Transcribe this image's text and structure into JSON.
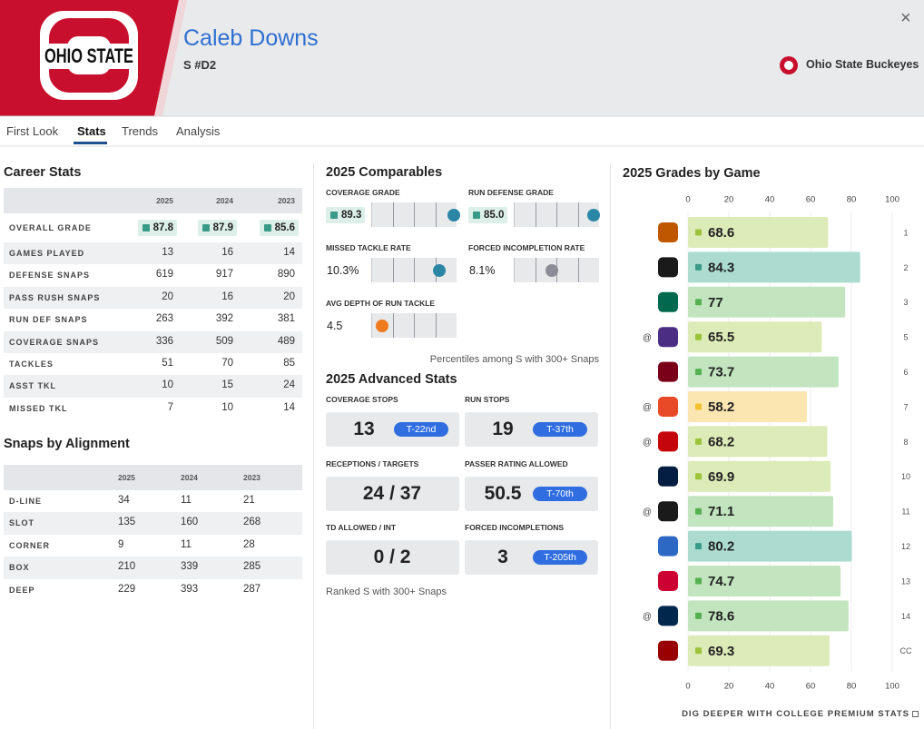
{
  "header": {
    "player_name": "Caleb Downs",
    "position": "S #D2",
    "team": "Ohio State Buckeyes",
    "logo_text": "OHIO STATE",
    "close": "×"
  },
  "tabs": {
    "items": [
      "First Look",
      "Stats",
      "Trends",
      "Analysis"
    ],
    "active": 1
  },
  "career_stats": {
    "title": "Career Stats",
    "columns": [
      "2025",
      "2024",
      "2023"
    ],
    "grade_row": {
      "label": "OVERALL GRADE",
      "values": [
        87.8,
        87.9,
        85.6
      ]
    },
    "rows": [
      {
        "label": "GAMES PLAYED",
        "values": [
          13,
          16,
          14
        ]
      },
      {
        "label": "DEFENSE SNAPS",
        "values": [
          619,
          917,
          890
        ]
      },
      {
        "label": "PASS RUSH SNAPS",
        "values": [
          20,
          16,
          20
        ]
      },
      {
        "label": "RUN DEF SNAPS",
        "values": [
          263,
          392,
          381
        ]
      },
      {
        "label": "COVERAGE SNAPS",
        "values": [
          336,
          509,
          489
        ]
      },
      {
        "label": "TACKLES",
        "values": [
          51,
          70,
          85
        ]
      },
      {
        "label": "ASST TKL",
        "values": [
          10,
          15,
          24
        ]
      },
      {
        "label": "MISSED TKL",
        "values": [
          7,
          10,
          14
        ]
      }
    ]
  },
  "snaps_by_alignment": {
    "title": "Snaps by Alignment",
    "columns": [
      "2025",
      "2024",
      "2023"
    ],
    "rows": [
      {
        "label": "D-LINE",
        "values": [
          34,
          11,
          21
        ]
      },
      {
        "label": "SLOT",
        "values": [
          135,
          160,
          268
        ]
      },
      {
        "label": "CORNER",
        "values": [
          9,
          11,
          28
        ]
      },
      {
        "label": "BOX",
        "values": [
          210,
          339,
          285
        ]
      },
      {
        "label": "DEEP",
        "values": [
          229,
          393,
          287
        ]
      }
    ]
  },
  "comparables": {
    "title": "2025 Comparables",
    "items": [
      {
        "label": "COVERAGE GRADE",
        "value": 89.3,
        "format": "grade",
        "percentile": 97,
        "dot_color": "#2b86a6"
      },
      {
        "label": "RUN DEFENSE GRADE",
        "value": 85,
        "value_label": "85.0",
        "format": "grade",
        "percentile": 94,
        "dot_color": "#2b86a6"
      },
      {
        "label": "MISSED TACKLE RATE",
        "value": 10.3,
        "value_label": "10.3%",
        "percentile": 80,
        "dot_color": "#2b86a6"
      },
      {
        "label": "FORCED INCOMPLETION RATE",
        "value": 8.1,
        "value_label": "8.1%",
        "percentile": 45,
        "dot_color": "#8c8c94"
      },
      {
        "label": "AVG DEPTH OF RUN TACKLE",
        "value": 4.5,
        "percentile": 13,
        "dot_color": "#f07a1e"
      }
    ],
    "note": "Percentiles among S with 300+ Snaps"
  },
  "advanced_stats": {
    "title": "2025 Advanced Stats",
    "items": [
      {
        "label": "COVERAGE STOPS",
        "value": 13,
        "rank": "T-22nd"
      },
      {
        "label": "RUN STOPS",
        "value": 19,
        "rank": "T-37th"
      },
      {
        "label": "RECEPTIONS / TARGETS",
        "value": "24 / 37"
      },
      {
        "label": "PASSER RATING ALLOWED",
        "value": 50.5,
        "rank": "T-70th"
      },
      {
        "label": "TD ALLOWED / INT",
        "value": "0 / 2"
      },
      {
        "label": "FORCED INCOMPLETIONS",
        "value": 3,
        "rank": "T-205th"
      }
    ],
    "note": "Ranked S with 300+ Snaps"
  },
  "grades_by_game": {
    "type": "bar",
    "title": "2025 Grades by Game",
    "categories": [
      "1",
      "2",
      "3",
      "5",
      "6",
      "7",
      "8",
      "10",
      "11",
      "12",
      "13",
      "14",
      "CC"
    ],
    "away": [
      false,
      false,
      false,
      true,
      false,
      true,
      true,
      false,
      true,
      false,
      false,
      true,
      false
    ],
    "away_marker": "@",
    "logo_colors": [
      "#bf5700",
      "#1a1a1a",
      "#00694e",
      "#4b2e83",
      "#7a0019",
      "#e84a27",
      "#c5050c",
      "#041e42",
      "#1a1a1a",
      "#2d68c4",
      "#cc0033",
      "#00274c",
      "#990000"
    ],
    "values": [
      68.6,
      84.3,
      77,
      65.5,
      73.7,
      58.2,
      68.2,
      69.9,
      71.1,
      80.2,
      74.7,
      78.6,
      69.3
    ],
    "xlim": [
      0,
      100
    ],
    "xticks": [
      0,
      20,
      40,
      60,
      80,
      100
    ],
    "grid": true
  },
  "footer": {
    "link": "DIG DEEPER WITH COLLEGE PREMIUM STATS"
  }
}
